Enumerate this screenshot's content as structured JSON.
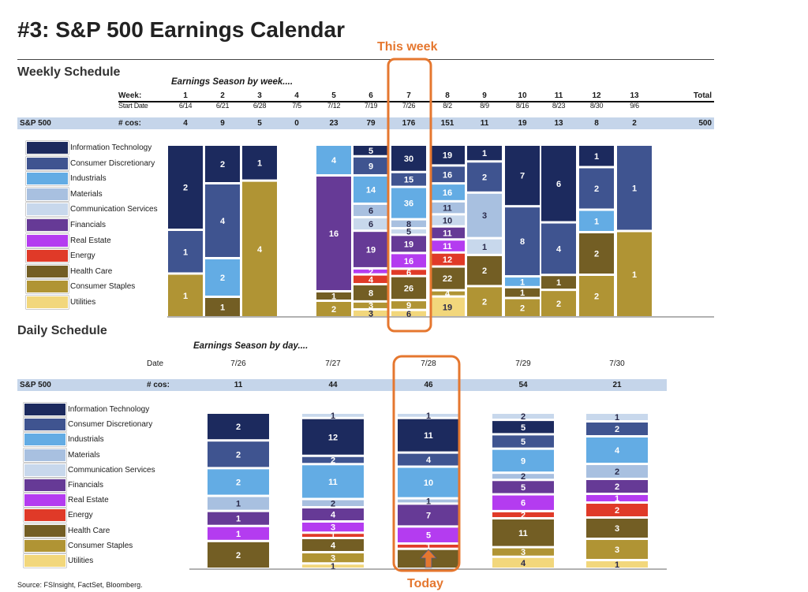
{
  "title": "#3: S&P 500 Earnings Calendar",
  "source": "Source: FSInsight, FactSet, Bloomberg.",
  "colors": {
    "Information Technology": "#1c2a5e",
    "Consumer Discretionary": "#3f5490",
    "Industrials": "#63ace4",
    "Materials": "#a8c0e0",
    "Communication Services": "#c8d8ec",
    "Financials": "#663a96",
    "Real Estate": "#b43cf0",
    "Energy": "#e03a28",
    "Health Care": "#735e24",
    "Consumer Staples": "#b09434",
    "Utilities": "#f2d77c",
    "highlight": "#e5772f"
  },
  "sectors": [
    "Information Technology",
    "Consumer Discretionary",
    "Industrials",
    "Materials",
    "Communication Services",
    "Financials",
    "Real Estate",
    "Energy",
    "Health Care",
    "Consumer Staples",
    "Utilities"
  ],
  "weekly": {
    "section_title": "Weekly Schedule",
    "subtitle": "Earnings Season by week....",
    "week_label": "Week:",
    "start_date_label": "Start Date",
    "row_label": "S&P 500",
    "cos_label": "# cos:",
    "total_label": "Total",
    "total_value": "500",
    "highlight_label": "This week"
  },
  "daily": {
    "section_title": "Daily Schedule",
    "subtitle": "Earnings Season by day....",
    "date_label": "Date",
    "row_label": "S&P 500",
    "cos_label": "# cos:",
    "highlight_label": "Today"
  },
  "chart_data": [
    {
      "type": "bar",
      "stacked": "100%",
      "categories": [
        "1",
        "2",
        "3",
        "4",
        "5",
        "6",
        "7",
        "8",
        "9",
        "10",
        "11",
        "12",
        "13"
      ],
      "start_dates": [
        "6/14",
        "6/21",
        "6/28",
        "7/5",
        "7/12",
        "7/19",
        "7/26",
        "8/2",
        "8/9",
        "8/16",
        "8/23",
        "8/30",
        "9/6"
      ],
      "totals": [
        4,
        9,
        5,
        0,
        23,
        79,
        176,
        151,
        11,
        19,
        13,
        8,
        2
      ],
      "series_order": "Information Technology, Consumer Discretionary, Industrials, Materials, Communication Services, Financials, Real Estate, Energy, Health Care, Consumer Staples, Utilities",
      "values": [
        [
          2,
          1,
          0,
          0,
          0,
          0,
          0,
          0,
          0,
          1,
          0
        ],
        [
          2,
          4,
          2,
          0,
          0,
          0,
          0,
          0,
          1,
          0,
          0
        ],
        [
          1,
          0,
          0,
          0,
          0,
          0,
          0,
          0,
          0,
          4,
          0
        ],
        [
          0,
          0,
          0,
          0,
          0,
          0,
          0,
          0,
          0,
          0,
          0
        ],
        [
          0,
          0,
          4,
          0,
          0,
          16,
          0,
          0,
          1,
          2,
          0
        ],
        [
          5,
          9,
          14,
          6,
          6,
          19,
          2,
          4,
          8,
          3,
          3
        ],
        [
          30,
          15,
          36,
          8,
          5,
          19,
          16,
          6,
          26,
          9,
          6
        ],
        [
          19,
          16,
          16,
          11,
          10,
          11,
          11,
          12,
          22,
          4,
          19
        ],
        [
          1,
          2,
          0,
          3,
          1,
          0,
          0,
          0,
          2,
          2,
          0
        ],
        [
          7,
          8,
          1,
          0,
          0,
          0,
          0,
          0,
          1,
          2,
          0
        ],
        [
          6,
          4,
          0,
          0,
          0,
          0,
          0,
          0,
          1,
          2,
          0
        ],
        [
          1,
          2,
          1,
          0,
          0,
          0,
          0,
          0,
          2,
          2,
          0
        ],
        [
          0,
          1,
          0,
          0,
          0,
          0,
          0,
          0,
          0,
          1,
          0
        ]
      ],
      "highlight_index": 6
    },
    {
      "type": "bar",
      "stacked": "100%",
      "categories": [
        "7/26",
        "7/27",
        "7/28",
        "7/29",
        "7/30"
      ],
      "totals": [
        11,
        44,
        46,
        54,
        21
      ],
      "segments": [
        [
          [
            "Information Technology",
            2
          ],
          [
            "Consumer Discretionary",
            2
          ],
          [
            "Industrials",
            2
          ],
          [
            "Materials",
            1
          ],
          [
            "Financials",
            1
          ],
          [
            "Real Estate",
            1
          ],
          [
            "Health Care",
            2
          ]
        ],
        [
          [
            "Communication Services",
            1
          ],
          [
            "Information Technology",
            12
          ],
          [
            "Consumer Discretionary",
            2
          ],
          [
            "Industrials",
            11
          ],
          [
            "Materials",
            2
          ],
          [
            "Financials",
            4
          ],
          [
            "Real Estate",
            3
          ],
          [
            "Energy",
            1
          ],
          [
            "Health Care",
            4
          ],
          [
            "Consumer Staples",
            3
          ],
          [
            "Utilities",
            1
          ]
        ],
        [
          [
            "Communication Services",
            1
          ],
          [
            "Information Technology",
            11
          ],
          [
            "Consumer Discretionary",
            4
          ],
          [
            "Industrials",
            10
          ],
          [
            "Materials",
            1
          ],
          [
            "Financials",
            7
          ],
          [
            "Real Estate",
            5
          ],
          [
            "Energy",
            1
          ],
          [
            "Health Care",
            6
          ]
        ],
        [
          [
            "Communication Services",
            2
          ],
          [
            "Information Technology",
            5
          ],
          [
            "Consumer Discretionary",
            5
          ],
          [
            "Industrials",
            9
          ],
          [
            "Materials",
            2
          ],
          [
            "Financials",
            5
          ],
          [
            "Real Estate",
            6
          ],
          [
            "Energy",
            2
          ],
          [
            "Health Care",
            11
          ],
          [
            "Consumer Staples",
            3
          ],
          [
            "Utilities",
            4
          ]
        ],
        [
          [
            "Communication Services",
            1
          ],
          [
            "Consumer Discretionary",
            2
          ],
          [
            "Industrials",
            4
          ],
          [
            "Materials",
            2
          ],
          [
            "Financials",
            2
          ],
          [
            "Real Estate",
            1
          ],
          [
            "Energy",
            2
          ],
          [
            "Health Care",
            3
          ],
          [
            "Consumer Staples",
            3
          ],
          [
            "Utilities",
            1
          ]
        ]
      ],
      "highlight_index": 2
    }
  ]
}
